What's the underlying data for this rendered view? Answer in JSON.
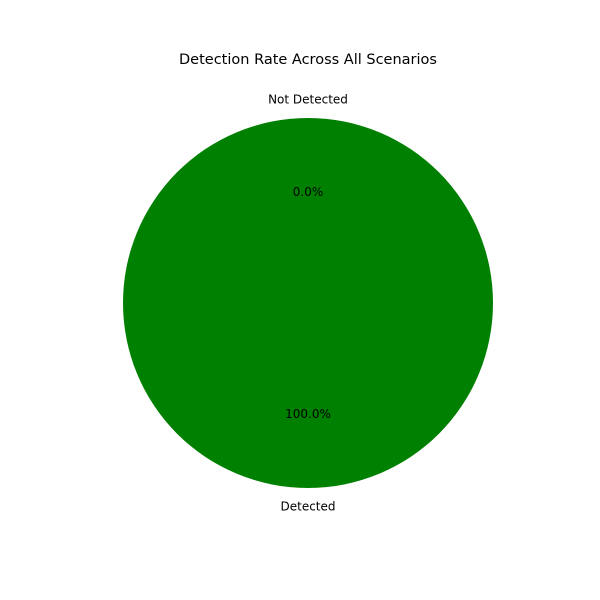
{
  "chart_data": {
    "type": "pie",
    "title": "Detection Rate Across All Scenarios",
    "slices": [
      {
        "label": "Detected",
        "value": 100.0,
        "pct_label": "100.0%",
        "color": "#008000"
      },
      {
        "label": "Not Detected",
        "value": 0.0,
        "pct_label": "0.0%",
        "color": "#ff0000"
      }
    ],
    "legend": "none",
    "start_angle_deg": 90
  }
}
